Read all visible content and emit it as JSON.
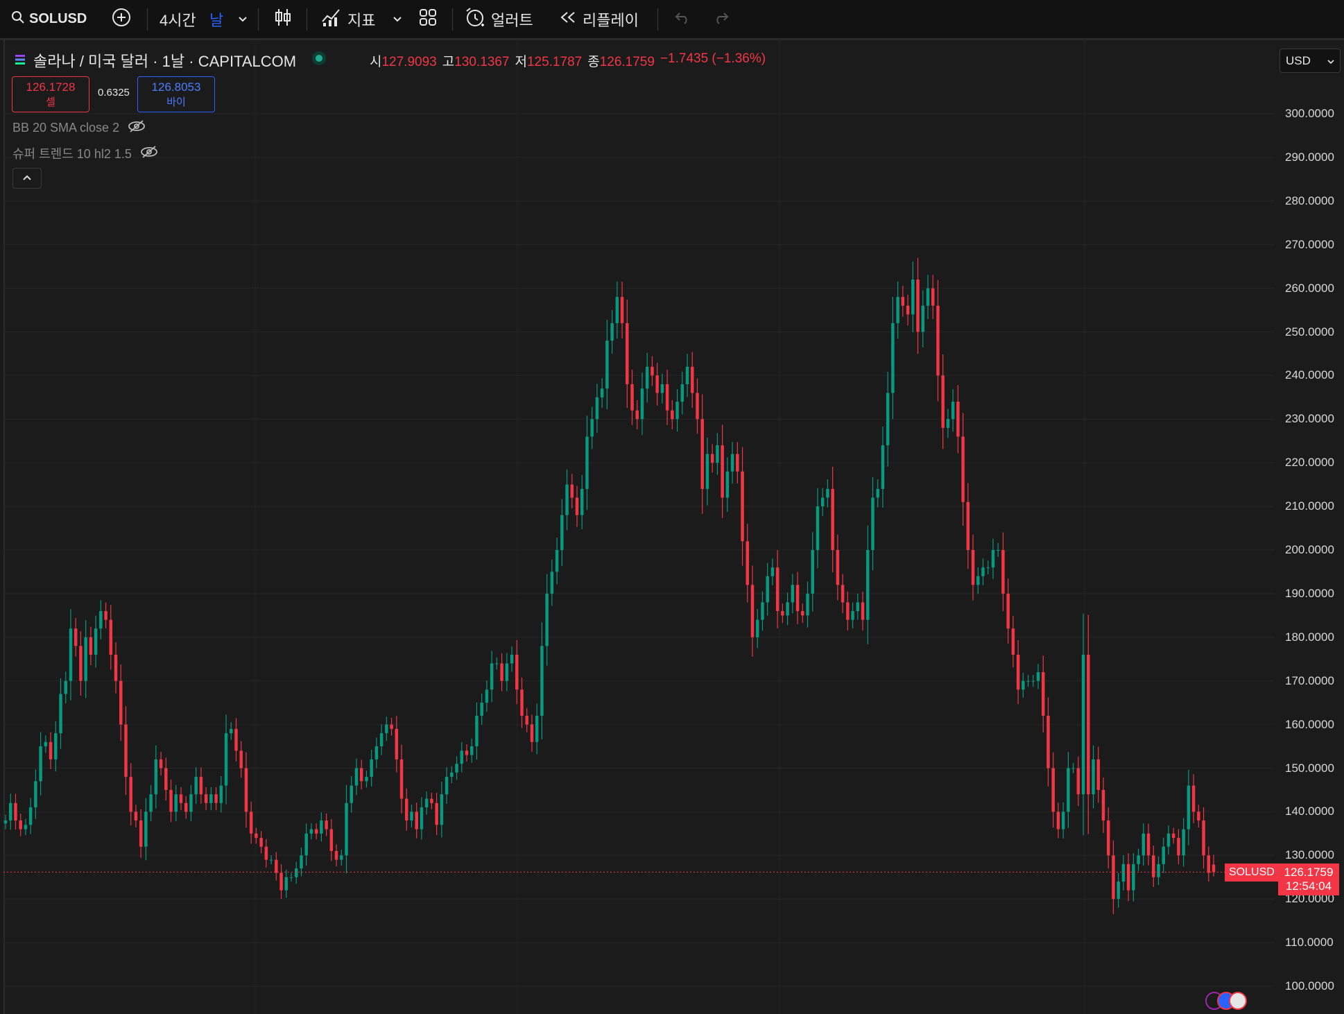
{
  "toolbar": {
    "symbol": "SOLUSD",
    "interval_4h": "4시간",
    "interval_day": "날",
    "indicators_label": "지표",
    "alert_label": "얼러트",
    "replay_label": "리플레이"
  },
  "legend": {
    "title": "솔라나 / 미국 달러 · 1날 · CAPITALCOM",
    "open_key": "시",
    "open": "127.9093",
    "high_key": "고",
    "high": "130.1367",
    "low_key": "저",
    "low": "125.1787",
    "close_key": "종",
    "close": "126.1759",
    "change": "−1.7435 (−1.36%)"
  },
  "trade": {
    "sell_price": "126.1728",
    "sell_label": "셀",
    "spread": "0.6325",
    "buy_price": "126.8053",
    "buy_label": "바이"
  },
  "indicators": [
    {
      "label": "BB 20 SMA close 2"
    },
    {
      "label": "슈퍼 트렌드 10 hl2 1.5"
    }
  ],
  "currency": "USD",
  "last_price_tag": {
    "symbol": "SOLUSD",
    "price": "126.1759",
    "countdown": "12:54:04"
  },
  "colors": {
    "up": "#089981",
    "down": "#f23645",
    "background": "#1b1b1b",
    "grid": "#262626"
  },
  "chart_data": {
    "type": "candlestick",
    "title": "",
    "y_axis": {
      "ticks": [
        "100.0000",
        "110.0000",
        "120.0000",
        "130.0000",
        "140.0000",
        "150.0000",
        "160.0000",
        "170.0000",
        "180.0000",
        "190.0000",
        "200.0000",
        "210.0000",
        "220.0000",
        "230.0000",
        "240.0000",
        "250.0000",
        "260.0000",
        "270.0000",
        "280.0000",
        "290.0000",
        "300.0000"
      ],
      "ylim": [
        94,
        308
      ]
    },
    "grid": true,
    "close_series": [
      138,
      142,
      138,
      136,
      137,
      141,
      147,
      155,
      156,
      152,
      158,
      167,
      170,
      182,
      178,
      170,
      180,
      176,
      182,
      186,
      184,
      176,
      170,
      160,
      148,
      140,
      138,
      132,
      140,
      144,
      152,
      150,
      145,
      140,
      144,
      142,
      140,
      144,
      148,
      144,
      142,
      144,
      142,
      146,
      158,
      159,
      154,
      150,
      140,
      135,
      134,
      132,
      129,
      129,
      126,
      122,
      125,
      125,
      127,
      130,
      135,
      136,
      135,
      138,
      136,
      131,
      129,
      130,
      142,
      146,
      150,
      147,
      148,
      152,
      155,
      158,
      160,
      159,
      152,
      143,
      138,
      140,
      136,
      141,
      143,
      142,
      137,
      144,
      148,
      149,
      151,
      154,
      153,
      155,
      162,
      165,
      168,
      174,
      174,
      170,
      174,
      176,
      168,
      162,
      160,
      156,
      162,
      178,
      190,
      195,
      200,
      208,
      215,
      212,
      208,
      214,
      226,
      230,
      235,
      237,
      248,
      252,
      258,
      252,
      238,
      232,
      230,
      237,
      242,
      240,
      236,
      238,
      232,
      230,
      234,
      238,
      242,
      236,
      230,
      214,
      222,
      220,
      224,
      212,
      218,
      222,
      218,
      202,
      192,
      180,
      184,
      188,
      194,
      196,
      186,
      185,
      188,
      192,
      186,
      185,
      190,
      200,
      210,
      212,
      214,
      200,
      192,
      188,
      184,
      186,
      188,
      184,
      200,
      212,
      214,
      224,
      236,
      252,
      258,
      256,
      254,
      262,
      250,
      256,
      260,
      256,
      240,
      228,
      230,
      234,
      226,
      211,
      200,
      192,
      194,
      196,
      196,
      200,
      200,
      190,
      182,
      176,
      168,
      170,
      170,
      170,
      172,
      162,
      150,
      140,
      136,
      140,
      150,
      150,
      144,
      176,
      144,
      152,
      145,
      138,
      130,
      120,
      124,
      128,
      122,
      128,
      130,
      135,
      130,
      125,
      128,
      132,
      135,
      134,
      130,
      136,
      146,
      140,
      138,
      130,
      126
    ],
    "last": {
      "open": 127.9093,
      "high": 130.1367,
      "low": 125.1787,
      "close": 126.1759
    }
  }
}
